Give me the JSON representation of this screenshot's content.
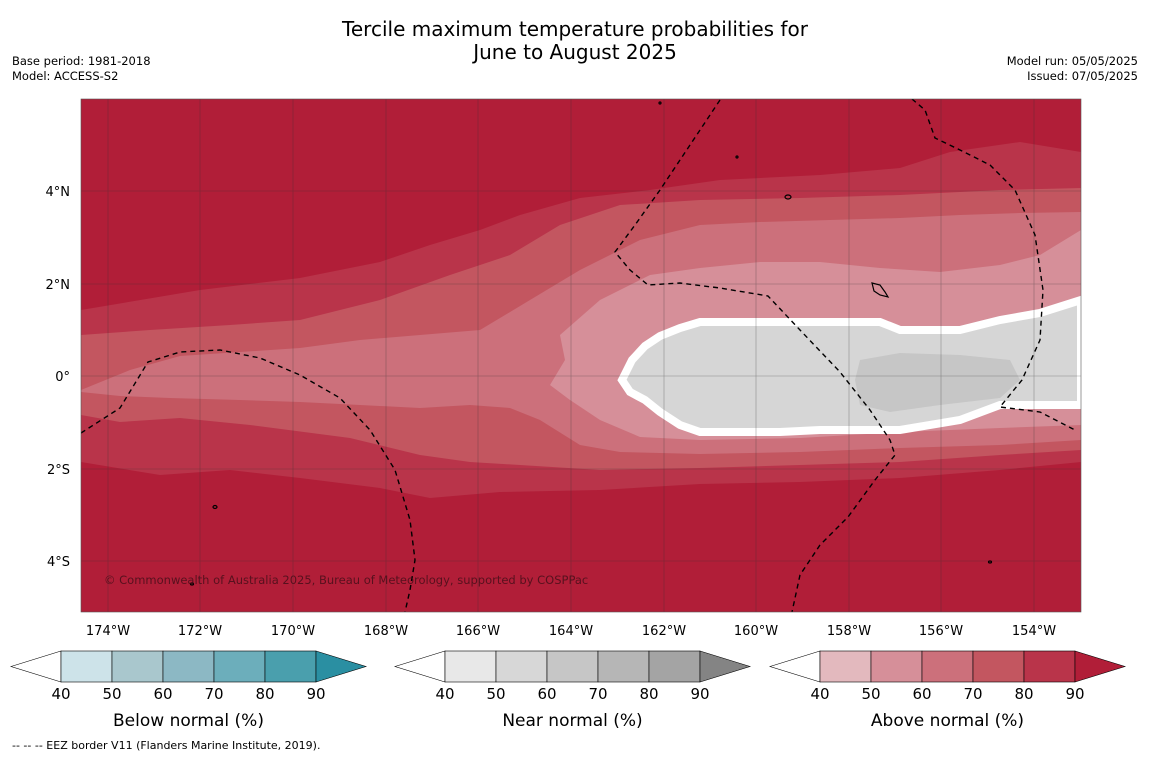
{
  "title": {
    "line1": "Tercile maximum temperature probabilities for",
    "line2": "June to August 2025"
  },
  "meta_left": {
    "base_period": "Base period: 1981-2018",
    "model": "Model: ACCESS-S2"
  },
  "meta_right": {
    "model_run": "Model run: 05/05/2025",
    "issued": "Issued: 07/05/2025"
  },
  "map": {
    "lat_labels": [
      "4°N",
      "2°N",
      "0°",
      "2°S",
      "4°S"
    ],
    "lon_labels": [
      "174°W",
      "172°W",
      "170°W",
      "168°W",
      "166°W",
      "164°W",
      "162°W",
      "160°W",
      "158°W",
      "156°W",
      "154°W"
    ],
    "copyright": "© Commonwealth of Australia 2025, Bureau of Meteorology, supported by COSPPac"
  },
  "colorbars": [
    {
      "label": "Below normal (%)",
      "ticks": [
        "40",
        "50",
        "60",
        "70",
        "80",
        "90"
      ],
      "colors": [
        "#ffffff",
        "#cde3e9",
        "#a9c7cd",
        "#8cb8c4",
        "#6caebb",
        "#4a9fad",
        "#2a8fa2"
      ]
    },
    {
      "label": "Near normal (%)",
      "ticks": [
        "40",
        "50",
        "60",
        "70",
        "80",
        "90"
      ],
      "colors": [
        "#ffffff",
        "#e8e8e8",
        "#d7d7d7",
        "#c6c6c6",
        "#b6b6b6",
        "#a4a4a4",
        "#848484"
      ]
    },
    {
      "label": "Above normal (%)",
      "ticks": [
        "40",
        "50",
        "60",
        "70",
        "80",
        "90"
      ],
      "colors": [
        "#ffffff",
        "#e3b9be",
        "#d68f99",
        "#cc707b",
        "#c35660",
        "#b9344a",
        "#b11e38"
      ]
    }
  ],
  "footer": "-- -- -- EEZ border V11 (Flanders Marine Institute, 2019)."
}
